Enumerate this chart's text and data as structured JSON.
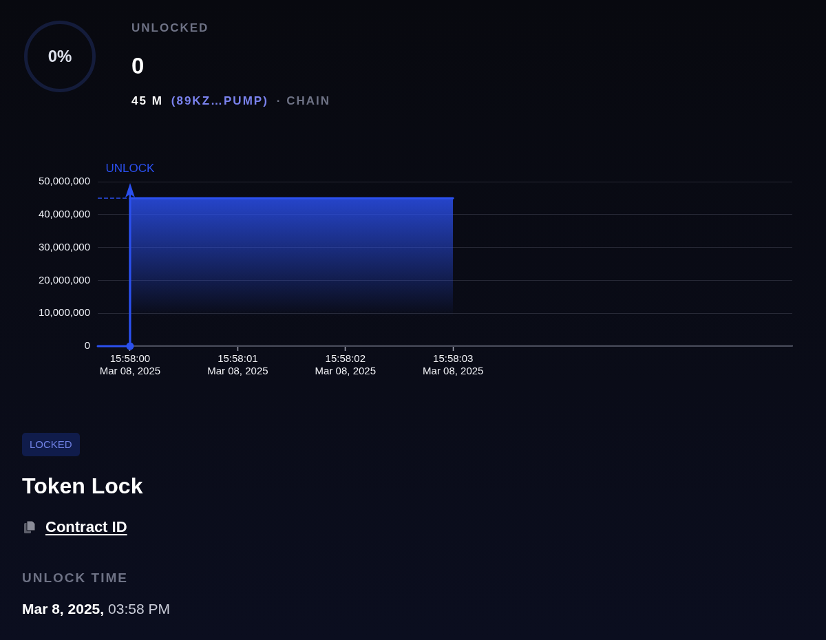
{
  "chart_data": {
    "type": "area",
    "series": [
      {
        "color": "#2b50ef",
        "x": [
          "2025-03-08T15:57:59.700",
          "2025-03-08T15:58:00",
          "2025-03-08T15:58:00",
          "2025-03-08T15:58:03"
        ],
        "values": [
          0,
          0,
          45000000,
          45000000
        ]
      },
      {
        "type": "line",
        "color": "#2b50ef",
        "line_style": "dashed",
        "x": [
          "2025-03-08T15:57:59.700",
          "2025-03-08T15:58:00"
        ],
        "values": [
          45000000,
          45000000
        ]
      },
      {
        "type": "scatter",
        "color": "#2b50ef",
        "marker": "circle",
        "x": [
          "2025-03-08T15:58:00"
        ],
        "values": [
          0
        ]
      }
    ],
    "xlim": [
      "2025-03-08T15:57:59.700",
      "2025-03-08T15:58:06.150"
    ],
    "xticks": [
      {
        "value": "2025-03-08T15:58:00",
        "label": "15:58:00\nMar 08, 2025"
      },
      {
        "value": "2025-03-08T15:58:01",
        "label": "15:58:01\nMar 08, 2025"
      },
      {
        "value": "2025-03-08T15:58:02",
        "label": "15:58:02\nMar 08, 2025"
      },
      {
        "value": "2025-03-08T15:58:03",
        "label": "15:58:03\nMar 08, 2025"
      }
    ],
    "ylim": [
      0,
      50000000
    ],
    "yticks": [
      0,
      {
        "value": 10000000,
        "label": "10,000,000"
      },
      {
        "value": 20000000,
        "label": "20,000,000"
      },
      {
        "value": 30000000,
        "label": "30,000,000"
      },
      {
        "value": 40000000,
        "label": "40,000,000"
      },
      {
        "value": 50000000,
        "label": "50,000,000"
      }
    ],
    "grid": "y",
    "ref_lines": [
      {
        "axis": "x",
        "value": "2025-03-08T15:58:00",
        "label": "UNLOCK",
        "color": "#2b50ef"
      }
    ],
    "annotations": [
      "0%",
      "UNLOCKED",
      "0",
      "45 M",
      "(89KZ…PUMP)",
      "· CHAIN",
      "LOCKED",
      "Token Lock",
      "Contract ID",
      "UNLOCK TIME",
      "Mar 8, 2025,",
      "03:58 PM"
    ]
  }
}
